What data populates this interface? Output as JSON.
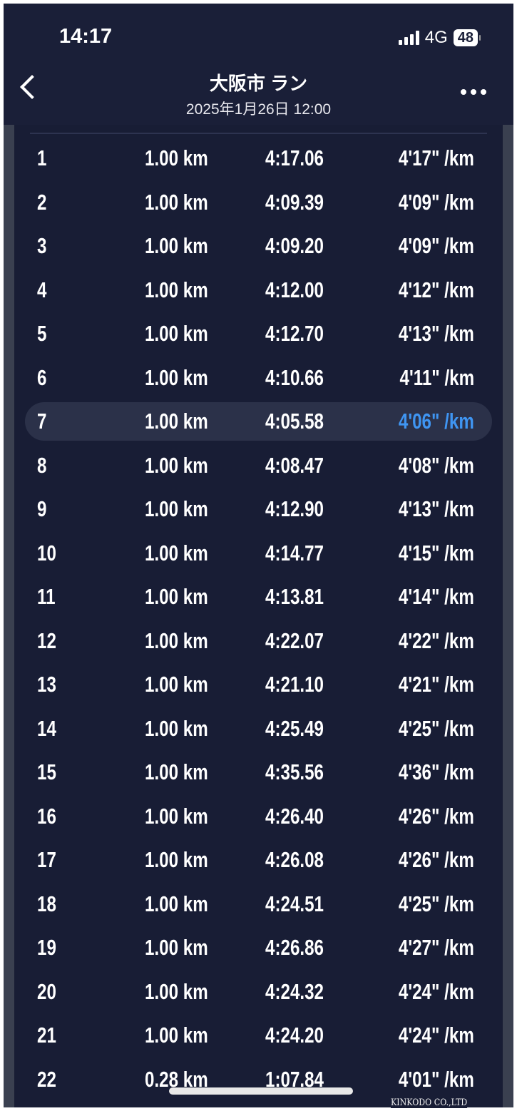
{
  "status_bar": {
    "time": "14:17",
    "network": "4G",
    "battery": "48"
  },
  "header": {
    "title": "大阪市 ラン",
    "subtitle": "2025年1月26日 12:00"
  },
  "colors": {
    "background": "#1a1f38",
    "highlight_row": "#2b3149",
    "best_pace": "#3f95f2"
  },
  "laps": [
    {
      "lap": "1",
      "distance": "1.00 km",
      "time": "4:17.06",
      "pace": "4'17\" /km"
    },
    {
      "lap": "2",
      "distance": "1.00 km",
      "time": "4:09.39",
      "pace": "4'09\" /km"
    },
    {
      "lap": "3",
      "distance": "1.00 km",
      "time": "4:09.20",
      "pace": "4'09\" /km"
    },
    {
      "lap": "4",
      "distance": "1.00 km",
      "time": "4:12.00",
      "pace": "4'12\" /km"
    },
    {
      "lap": "5",
      "distance": "1.00 km",
      "time": "4:12.70",
      "pace": "4'13\" /km"
    },
    {
      "lap": "6",
      "distance": "1.00 km",
      "time": "4:10.66",
      "pace": "4'11\" /km"
    },
    {
      "lap": "7",
      "distance": "1.00 km",
      "time": "4:05.58",
      "pace": "4'06\" /km",
      "highlighted": true
    },
    {
      "lap": "8",
      "distance": "1.00 km",
      "time": "4:08.47",
      "pace": "4'08\" /km"
    },
    {
      "lap": "9",
      "distance": "1.00 km",
      "time": "4:12.90",
      "pace": "4'13\" /km"
    },
    {
      "lap": "10",
      "distance": "1.00 km",
      "time": "4:14.77",
      "pace": "4'15\" /km"
    },
    {
      "lap": "11",
      "distance": "1.00 km",
      "time": "4:13.81",
      "pace": "4'14\" /km"
    },
    {
      "lap": "12",
      "distance": "1.00 km",
      "time": "4:22.07",
      "pace": "4'22\" /km"
    },
    {
      "lap": "13",
      "distance": "1.00 km",
      "time": "4:21.10",
      "pace": "4'21\" /km"
    },
    {
      "lap": "14",
      "distance": "1.00 km",
      "time": "4:25.49",
      "pace": "4'25\" /km"
    },
    {
      "lap": "15",
      "distance": "1.00 km",
      "time": "4:35.56",
      "pace": "4'36\" /km"
    },
    {
      "lap": "16",
      "distance": "1.00 km",
      "time": "4:26.40",
      "pace": "4'26\" /km"
    },
    {
      "lap": "17",
      "distance": "1.00 km",
      "time": "4:26.08",
      "pace": "4'26\" /km"
    },
    {
      "lap": "18",
      "distance": "1.00 km",
      "time": "4:24.51",
      "pace": "4'25\" /km"
    },
    {
      "lap": "19",
      "distance": "1.00 km",
      "time": "4:26.86",
      "pace": "4'27\" /km"
    },
    {
      "lap": "20",
      "distance": "1.00 km",
      "time": "4:24.32",
      "pace": "4'24\" /km"
    },
    {
      "lap": "21",
      "distance": "1.00 km",
      "time": "4:24.20",
      "pace": "4'24\" /km"
    },
    {
      "lap": "22",
      "distance": "0.28 km",
      "time": "1:07.84",
      "pace": "4'01\" /km"
    }
  ],
  "watermark": "KINKODO CO.,LTD"
}
